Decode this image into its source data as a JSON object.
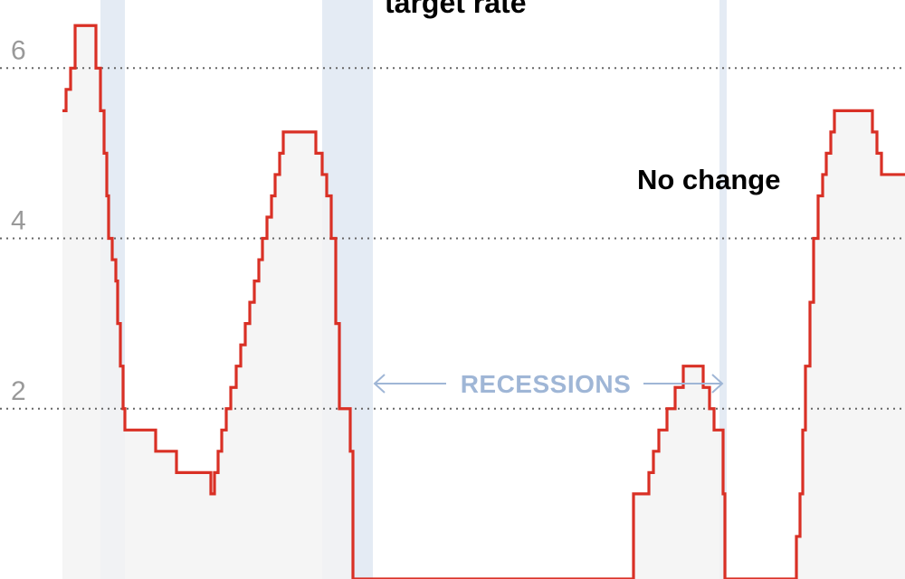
{
  "chart_data": {
    "type": "line",
    "step": true,
    "title": "target rate",
    "annotation": "No change",
    "recessions_label": "RECESSIONS",
    "y_ticks": [
      {
        "value": 2,
        "label": "2"
      },
      {
        "value": 4,
        "label": "4"
      },
      {
        "value": 6,
        "label": "6"
      }
    ],
    "ylim": [
      0.0,
      6.8
    ],
    "xlim": [
      0,
      100
    ],
    "grid": true,
    "recessions": [
      {
        "start": 11.1,
        "end": 13.8
      },
      {
        "start": 35.6,
        "end": 41.2
      },
      {
        "start": 79.5,
        "end": 80.3
      }
    ],
    "series": [
      {
        "values": [
          [
            6.9,
            5.5
          ],
          [
            7.3,
            5.75
          ],
          [
            7.8,
            6.0
          ],
          [
            8.3,
            6.5
          ],
          [
            10.6,
            6.0
          ],
          [
            11.1,
            5.5
          ],
          [
            11.5,
            5.0
          ],
          [
            11.8,
            4.5
          ],
          [
            12.0,
            4.0
          ],
          [
            12.4,
            3.75
          ],
          [
            12.8,
            3.5
          ],
          [
            13.0,
            3.0
          ],
          [
            13.3,
            2.5
          ],
          [
            13.6,
            2.0
          ],
          [
            13.8,
            1.75
          ],
          [
            17.2,
            1.5
          ],
          [
            19.5,
            1.25
          ],
          [
            23.3,
            1.0
          ],
          [
            23.7,
            1.25
          ],
          [
            24.1,
            1.5
          ],
          [
            24.5,
            1.75
          ],
          [
            25.0,
            2.0
          ],
          [
            25.5,
            2.25
          ],
          [
            26.1,
            2.5
          ],
          [
            26.6,
            2.75
          ],
          [
            27.1,
            3.0
          ],
          [
            27.6,
            3.25
          ],
          [
            28.1,
            3.5
          ],
          [
            28.6,
            3.75
          ],
          [
            29.0,
            4.0
          ],
          [
            29.5,
            4.25
          ],
          [
            30.0,
            4.5
          ],
          [
            30.4,
            4.75
          ],
          [
            30.9,
            5.0
          ],
          [
            31.3,
            5.25
          ],
          [
            34.9,
            5.0
          ],
          [
            35.6,
            4.75
          ],
          [
            36.1,
            4.5
          ],
          [
            36.6,
            4.0
          ],
          [
            37.1,
            3.0
          ],
          [
            37.5,
            2.0
          ],
          [
            38.7,
            1.5
          ],
          [
            39.0,
            0.0
          ],
          [
            70.0,
            0.0
          ],
          [
            70.0,
            1.0
          ],
          [
            71.7,
            1.25
          ],
          [
            72.2,
            1.5
          ],
          [
            72.8,
            1.75
          ],
          [
            73.7,
            2.0
          ],
          [
            74.6,
            2.25
          ],
          [
            75.5,
            2.5
          ],
          [
            77.7,
            2.25
          ],
          [
            78.4,
            2.0
          ],
          [
            78.9,
            1.75
          ],
          [
            79.9,
            1.0
          ],
          [
            80.1,
            0.0
          ],
          [
            88.0,
            0.0
          ],
          [
            88.0,
            0.5
          ],
          [
            88.4,
            1.0
          ],
          [
            88.7,
            1.75
          ],
          [
            89.0,
            2.5
          ],
          [
            89.5,
            3.25
          ],
          [
            89.9,
            4.0
          ],
          [
            90.4,
            4.5
          ],
          [
            90.9,
            4.75
          ],
          [
            91.3,
            5.0
          ],
          [
            91.8,
            5.25
          ],
          [
            92.2,
            5.5
          ],
          [
            96.4,
            5.25
          ],
          [
            96.9,
            5.0
          ],
          [
            97.4,
            4.75
          ],
          [
            100.0,
            4.75
          ]
        ]
      }
    ]
  },
  "style": {
    "line_color": "#d93025",
    "fill_color": "#f3f3f3",
    "recession_color": "#e4ebf4",
    "grid_color": "#666666",
    "tick_color": "#999999",
    "recession_label_color": "#9fb6d6"
  }
}
